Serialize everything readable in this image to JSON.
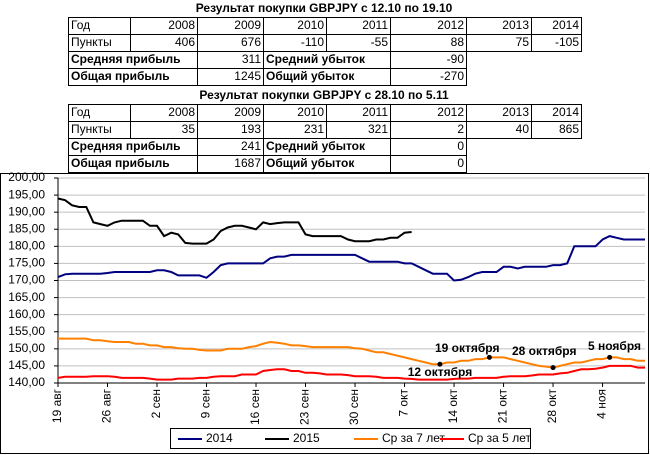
{
  "tables": [
    {
      "title": "Результат покупки GBPJPY с 12.10 по 19.10",
      "rows": [
        [
          "Год",
          2008,
          2009,
          2010,
          2011,
          2012,
          2013,
          2014
        ],
        [
          "Пункты",
          406,
          676,
          -110,
          -55,
          88,
          75,
          -105
        ]
      ],
      "summary": [
        [
          "Средняя прибыль",
          311,
          "Средний убыток",
          -90
        ],
        [
          "Общая прибыль",
          1245,
          "Общий убыток",
          -270
        ]
      ]
    },
    {
      "title": "Результат покупки GBPJPY с 28.10 по 5.11",
      "rows": [
        [
          "Год",
          2008,
          2009,
          2010,
          2011,
          2012,
          2013,
          2014
        ],
        [
          "Пункты",
          35,
          193,
          231,
          321,
          2,
          40,
          865
        ]
      ],
      "summary": [
        [
          "Средняя прибыль",
          241,
          "Средний убыток",
          0
        ],
        [
          "Общая прибыль",
          1687,
          "Общий убыток",
          0
        ]
      ]
    }
  ],
  "chart_data": {
    "type": "line",
    "categories": [
      "19 авг",
      null,
      null,
      null,
      null,
      null,
      null,
      "26 авг",
      null,
      null,
      null,
      null,
      null,
      null,
      "2 сен",
      null,
      null,
      null,
      null,
      null,
      null,
      "9 сен",
      null,
      null,
      null,
      null,
      null,
      null,
      "16 сен",
      null,
      null,
      null,
      null,
      null,
      null,
      "23 сен",
      null,
      null,
      null,
      null,
      null,
      null,
      "30 сен",
      null,
      null,
      null,
      null,
      null,
      null,
      "7 окт",
      null,
      null,
      null,
      null,
      null,
      null,
      "14 окт",
      null,
      null,
      null,
      null,
      null,
      null,
      "21 окт",
      null,
      null,
      null,
      null,
      null,
      null,
      "28 окт",
      null,
      null,
      null,
      null,
      null,
      null,
      "4 ноя",
      null,
      null,
      null,
      null,
      null,
      null
    ],
    "series": [
      {
        "name": "2014",
        "color": "#000080",
        "values": [
          171,
          171.8,
          172,
          172,
          172,
          172,
          172,
          172.2,
          172.5,
          172.5,
          172.5,
          172.5,
          172.5,
          172.5,
          173,
          173,
          172.5,
          171.5,
          171.5,
          171.5,
          171.5,
          170.8,
          172.5,
          174.5,
          175,
          175,
          175,
          175,
          175,
          175,
          176.5,
          177,
          177,
          177.5,
          177.5,
          177.5,
          177.5,
          177.5,
          177.5,
          177.5,
          177.5,
          177.5,
          177.5,
          176.5,
          175.5,
          175.5,
          175.5,
          175.5,
          175.5,
          175,
          175,
          174,
          173,
          172,
          172,
          172,
          170,
          170.2,
          171,
          172,
          172.5,
          172.5,
          172.5,
          174,
          174,
          173.5,
          174,
          174,
          174,
          174,
          174.5,
          174.5,
          175,
          180,
          180,
          180,
          180,
          182,
          183,
          182.5,
          182,
          182,
          182,
          182
        ]
      },
      {
        "name": "2015",
        "color": "#000000",
        "values": [
          194,
          193.5,
          192,
          191.5,
          191.5,
          187,
          186.5,
          186,
          187,
          187.5,
          187.5,
          187.5,
          187.5,
          186,
          186,
          183,
          184,
          183.5,
          181,
          180.8,
          180.8,
          180.8,
          182,
          184.5,
          185.5,
          186,
          186,
          185.5,
          185,
          187,
          186.5,
          186.8,
          187,
          187,
          187,
          183.5,
          183,
          183,
          183,
          183,
          183,
          182,
          181.5,
          181.5,
          181.5,
          182,
          182,
          182.5,
          182.5,
          184,
          184.2,
          null,
          null,
          null,
          null,
          null,
          null,
          null,
          null,
          null,
          null,
          null,
          null,
          null,
          null,
          null,
          null,
          null,
          null,
          null,
          null,
          null,
          null,
          null,
          null,
          null,
          null,
          null,
          null,
          null,
          null,
          null,
          null,
          null
        ]
      },
      {
        "name": "Ср за 7 лет",
        "color": "#ff8000",
        "values": [
          153,
          153,
          153,
          153,
          153,
          152.5,
          152.5,
          152.2,
          152,
          152,
          152,
          151.5,
          151.5,
          151,
          151,
          150.5,
          150.5,
          150.2,
          150,
          150,
          149.7,
          149.5,
          149.5,
          149.5,
          150,
          150,
          150,
          150.5,
          150.8,
          151.5,
          152,
          151.8,
          151.5,
          151,
          151,
          150.8,
          150.5,
          150.5,
          150.5,
          150.5,
          150.5,
          150.5,
          150.2,
          150,
          149.5,
          149,
          149,
          148.5,
          148,
          147.5,
          147,
          146.5,
          146,
          145.5,
          145.5,
          146,
          146,
          146.5,
          146.5,
          147,
          147,
          147.5,
          147.5,
          147.5,
          147,
          146.5,
          146,
          145.5,
          145,
          144.8,
          144.5,
          145,
          145.5,
          146,
          146,
          146.5,
          147,
          147,
          147.5,
          147.5,
          147,
          147,
          146.5,
          146.5
        ]
      },
      {
        "name": "Ср за 5 лет",
        "color": "#ff0000",
        "values": [
          141.5,
          141.8,
          141.8,
          141.8,
          141.8,
          142,
          142,
          142,
          141.8,
          141.5,
          141.5,
          141.5,
          141.5,
          141.3,
          141,
          141,
          141,
          141.3,
          141.3,
          141.3,
          141.5,
          141.5,
          141.8,
          142,
          142,
          142,
          142.5,
          142.5,
          142.5,
          143.5,
          143.8,
          144,
          144,
          143.5,
          143.5,
          143,
          143,
          142.8,
          142.5,
          142.5,
          142.5,
          142.3,
          142,
          142,
          142,
          141.8,
          141.5,
          141.5,
          141.5,
          141.3,
          141.2,
          141,
          141,
          141,
          141,
          141,
          141.2,
          141.3,
          141.3,
          141.5,
          141.5,
          141.5,
          141.5,
          141.8,
          142,
          142,
          142,
          142.2,
          142.5,
          142.5,
          142.5,
          142.8,
          143,
          143.5,
          144,
          144,
          144.2,
          144.5,
          145,
          145,
          145,
          145,
          144.5,
          144.5
        ]
      }
    ],
    "ylim": [
      140,
      200
    ],
    "yticks": [
      {
        "value": 140,
        "label": "140,00"
      },
      {
        "value": 145,
        "label": "145,00"
      },
      {
        "value": 150,
        "label": "150,00"
      },
      {
        "value": 155,
        "label": "155,00"
      },
      {
        "value": 160,
        "label": "160,00"
      },
      {
        "value": 165,
        "label": "165,00"
      },
      {
        "value": 170,
        "label": "170,00"
      },
      {
        "value": 175,
        "label": "175,00"
      },
      {
        "value": 180,
        "label": "180,00"
      },
      {
        "value": 185,
        "label": "185,00"
      },
      {
        "value": 190,
        "label": "190,00"
      },
      {
        "value": 195,
        "label": "195,00"
      },
      {
        "value": 200,
        "label": "200,00"
      }
    ],
    "grid": true,
    "legend": "bottom",
    "annotations": [
      "12 октября",
      "19 октября",
      "28 октября",
      "5 ноября"
    ]
  }
}
